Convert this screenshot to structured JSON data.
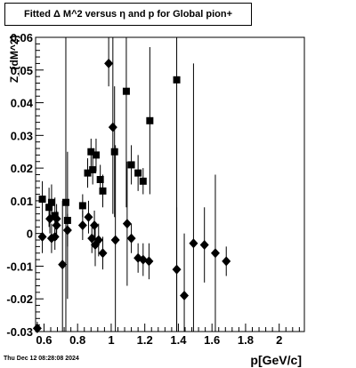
{
  "chart_data": {
    "type": "scatter",
    "title": "Fitted Δ M^2 versus η and p for Global pion+",
    "xlabel": "p[GeV/c]",
    "ylabel": "Z_{dM^2}",
    "xlim": [
      0.55,
      2.15
    ],
    "ylim": [
      -0.03,
      0.06
    ],
    "xticks": [
      0.6,
      0.8,
      1.0,
      1.2,
      1.4,
      1.6,
      1.8,
      2.0
    ],
    "xtick_labels": [
      "0.6",
      "0.8",
      "1",
      "1.2",
      "1.4",
      "1.6",
      "1.8",
      "2"
    ],
    "yticks": [
      -0.03,
      -0.02,
      -0.01,
      0,
      0.01,
      0.02,
      0.03,
      0.04,
      0.05,
      0.06
    ],
    "ytick_labels": [
      "-0.03",
      "-0.02",
      "-0.01",
      "0",
      "0.01",
      "0.02",
      "0.03",
      "0.04",
      "0.05",
      "0.06"
    ],
    "series": [
      {
        "marker": "square",
        "points": [
          {
            "x": 0.59,
            "y": 0.0105,
            "lo": 0.004,
            "hi": 0.016
          },
          {
            "x": 0.63,
            "y": 0.008,
            "lo": 0.002,
            "hi": 0.014
          },
          {
            "x": 0.645,
            "y": 0.0095,
            "lo": 0.004,
            "hi": 0.015
          },
          {
            "x": 0.665,
            "y": 0.0055,
            "lo": 0.0,
            "hi": 0.011
          },
          {
            "x": 0.73,
            "y": 0.0095,
            "lo": -0.03,
            "hi": 0.06
          },
          {
            "x": 0.74,
            "y": 0.004,
            "lo": -0.02,
            "hi": 0.025
          },
          {
            "x": 0.83,
            "y": 0.0085,
            "lo": 0.005,
            "hi": 0.012
          },
          {
            "x": 0.86,
            "y": 0.0185,
            "lo": 0.014,
            "hi": 0.023
          },
          {
            "x": 0.88,
            "y": 0.025,
            "lo": 0.02,
            "hi": 0.029
          },
          {
            "x": 0.89,
            "y": 0.0195,
            "lo": 0.015,
            "hi": 0.024
          },
          {
            "x": 0.91,
            "y": 0.024,
            "lo": 0.019,
            "hi": 0.029
          },
          {
            "x": 0.935,
            "y": 0.0165,
            "lo": 0.012,
            "hi": 0.021
          },
          {
            "x": 0.95,
            "y": 0.013,
            "lo": 0.008,
            "hi": 0.018
          },
          {
            "x": 1.02,
            "y": 0.025,
            "lo": 0.005,
            "hi": 0.045
          },
          {
            "x": 1.09,
            "y": 0.0435,
            "lo": 0.008,
            "hi": 0.06
          },
          {
            "x": 1.12,
            "y": 0.021,
            "lo": 0.015,
            "hi": 0.027
          },
          {
            "x": 1.16,
            "y": 0.0185,
            "lo": 0.013,
            "hi": 0.024
          },
          {
            "x": 1.19,
            "y": 0.016,
            "lo": 0.012,
            "hi": 0.02
          },
          {
            "x": 1.23,
            "y": 0.0345,
            "lo": 0.012,
            "hi": 0.057
          },
          {
            "x": 1.39,
            "y": 0.047,
            "lo": -0.03,
            "hi": 0.06
          }
        ]
      },
      {
        "marker": "diamond",
        "points": [
          {
            "x": 0.56,
            "y": -0.029,
            "lo": -0.03,
            "hi": -0.027
          },
          {
            "x": 0.59,
            "y": -0.001,
            "lo": -0.006,
            "hi": 0.004
          },
          {
            "x": 0.635,
            "y": 0.0045,
            "lo": 0.0,
            "hi": 0.009
          },
          {
            "x": 0.645,
            "y": -0.0015,
            "lo": -0.006,
            "hi": 0.003
          },
          {
            "x": 0.665,
            "y": -0.001,
            "lo": -0.005,
            "hi": 0.003
          },
          {
            "x": 0.675,
            "y": 0.0045,
            "lo": 0.0,
            "hi": 0.009
          },
          {
            "x": 0.675,
            "y": 0.0025,
            "lo": -0.002,
            "hi": 0.007
          },
          {
            "x": 0.71,
            "y": -0.0095,
            "lo": -0.03,
            "hi": 0.01
          },
          {
            "x": 0.74,
            "y": 0.001,
            "lo": -0.004,
            "hi": 0.006
          },
          {
            "x": 0.83,
            "y": 0.0025,
            "lo": -0.002,
            "hi": 0.007
          },
          {
            "x": 0.865,
            "y": 0.005,
            "lo": 0.0,
            "hi": 0.01
          },
          {
            "x": 0.885,
            "y": -0.0015,
            "lo": -0.006,
            "hi": 0.003
          },
          {
            "x": 0.9,
            "y": 0.0025,
            "lo": -0.002,
            "hi": 0.007
          },
          {
            "x": 0.905,
            "y": -0.0035,
            "lo": -0.01,
            "hi": 0.003
          },
          {
            "x": 0.925,
            "y": -0.002,
            "lo": -0.007,
            "hi": 0.003
          },
          {
            "x": 0.95,
            "y": -0.006,
            "lo": -0.011,
            "hi": -0.001
          },
          {
            "x": 0.985,
            "y": 0.052,
            "lo": 0.045,
            "hi": 0.06
          },
          {
            "x": 1.01,
            "y": 0.0325,
            "lo": 0.006,
            "hi": 0.06
          },
          {
            "x": 1.025,
            "y": -0.002,
            "lo": -0.03,
            "hi": 0.027
          },
          {
            "x": 1.095,
            "y": 0.003,
            "lo": -0.016,
            "hi": 0.022
          },
          {
            "x": 1.12,
            "y": -0.0015,
            "lo": -0.006,
            "hi": 0.003
          },
          {
            "x": 1.16,
            "y": -0.0075,
            "lo": -0.012,
            "hi": -0.003
          },
          {
            "x": 1.19,
            "y": -0.008,
            "lo": -0.013,
            "hi": -0.003
          },
          {
            "x": 1.225,
            "y": -0.0085,
            "lo": -0.014,
            "hi": -0.003
          },
          {
            "x": 1.39,
            "y": -0.011,
            "lo": -0.03,
            "hi": 0.008
          },
          {
            "x": 1.435,
            "y": -0.019,
            "lo": -0.03,
            "hi": 0.0
          },
          {
            "x": 1.49,
            "y": -0.003,
            "lo": -0.03,
            "hi": 0.052
          },
          {
            "x": 1.555,
            "y": -0.0035,
            "lo": -0.015,
            "hi": 0.008
          },
          {
            "x": 1.62,
            "y": -0.006,
            "lo": -0.03,
            "hi": 0.018
          },
          {
            "x": 1.685,
            "y": -0.0085,
            "lo": -0.013,
            "hi": -0.004
          }
        ]
      }
    ]
  },
  "timestamp": "Thu Dec 12 08:28:08 2024"
}
